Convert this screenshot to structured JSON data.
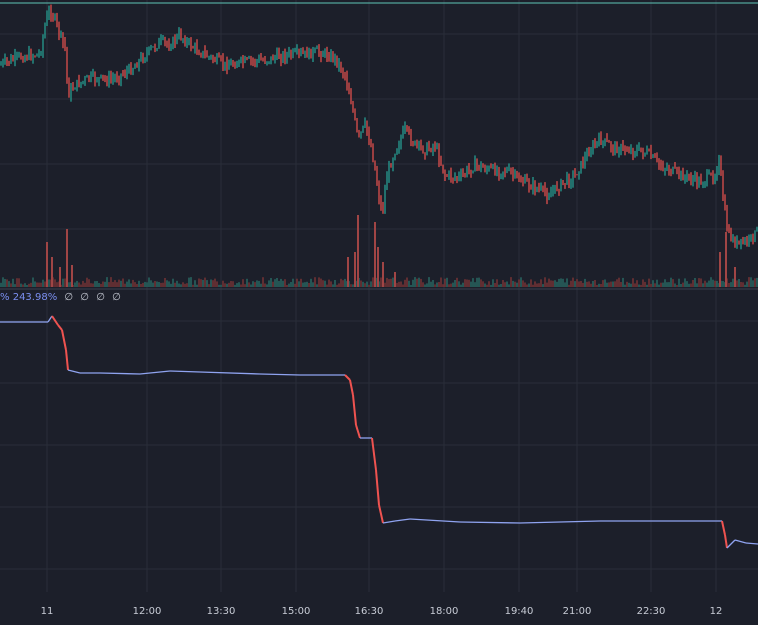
{
  "chart_data": [
    {
      "type": "candlestick",
      "panel": "price",
      "colors": {
        "up": "#26a69a",
        "down": "#ef5350",
        "background": "#1c1f2a",
        "grid": "#2a2e39"
      },
      "grid": true,
      "volume_overlay": true
    },
    {
      "type": "line",
      "panel": "indicator",
      "legend_text": "243.98%",
      "legend_text_prefix": "%",
      "na_values": [
        "∅",
        "∅",
        "∅",
        "∅"
      ],
      "colors": {
        "line_up": "#8fa3f0",
        "line_down": "#ef5350"
      },
      "grid": true
    }
  ],
  "x_axis": {
    "tick_labels": [
      "11",
      "12:00",
      "13:30",
      "15:00",
      "16:30",
      "18:00",
      "19:40",
      "21:00",
      "22:30",
      "12"
    ]
  },
  "series": {
    "price_path": [
      [
        0,
        65
      ],
      [
        20,
        57
      ],
      [
        40,
        54
      ],
      [
        46,
        20
      ],
      [
        50,
        10
      ],
      [
        55,
        20
      ],
      [
        60,
        35
      ],
      [
        65,
        48
      ],
      [
        68,
        95
      ],
      [
        75,
        85
      ],
      [
        90,
        78
      ],
      [
        110,
        80
      ],
      [
        130,
        70
      ],
      [
        145,
        55
      ],
      [
        160,
        42
      ],
      [
        170,
        45
      ],
      [
        180,
        35
      ],
      [
        190,
        45
      ],
      [
        205,
        55
      ],
      [
        225,
        65
      ],
      [
        245,
        62
      ],
      [
        265,
        60
      ],
      [
        285,
        55
      ],
      [
        300,
        55
      ],
      [
        320,
        52
      ],
      [
        335,
        58
      ],
      [
        345,
        75
      ],
      [
        352,
        105
      ],
      [
        358,
        140
      ],
      [
        365,
        125
      ],
      [
        372,
        150
      ],
      [
        378,
        190
      ],
      [
        382,
        215
      ],
      [
        387,
        175
      ],
      [
        395,
        150
      ],
      [
        405,
        130
      ],
      [
        415,
        145
      ],
      [
        425,
        150
      ],
      [
        435,
        145
      ],
      [
        445,
        175
      ],
      [
        460,
        178
      ],
      [
        475,
        165
      ],
      [
        490,
        170
      ],
      [
        505,
        170
      ],
      [
        520,
        180
      ],
      [
        540,
        190
      ],
      [
        548,
        195
      ],
      [
        560,
        185
      ],
      [
        575,
        175
      ],
      [
        590,
        150
      ],
      [
        600,
        140
      ],
      [
        615,
        148
      ],
      [
        630,
        150
      ],
      [
        645,
        152
      ],
      [
        660,
        165
      ],
      [
        680,
        175
      ],
      [
        700,
        182
      ],
      [
        715,
        175
      ],
      [
        719,
        155
      ],
      [
        723,
        200
      ],
      [
        728,
        235
      ],
      [
        738,
        245
      ],
      [
        750,
        240
      ],
      [
        758,
        230
      ]
    ],
    "volume_spikes": [
      [
        47,
        45
      ],
      [
        52,
        30
      ],
      [
        60,
        20
      ],
      [
        67,
        58
      ],
      [
        72,
        22
      ],
      [
        348,
        30
      ],
      [
        355,
        35
      ],
      [
        358,
        72
      ],
      [
        375,
        65
      ],
      [
        378,
        40
      ],
      [
        383,
        25
      ],
      [
        395,
        15
      ],
      [
        720,
        35
      ],
      [
        726,
        55
      ],
      [
        735,
        20
      ]
    ],
    "indicator_path": [
      [
        0,
        322
      ],
      [
        48,
        322
      ],
      [
        52,
        316
      ],
      [
        58,
        325
      ],
      [
        62,
        330
      ],
      [
        66,
        350
      ],
      [
        68,
        370
      ],
      [
        80,
        373
      ],
      [
        100,
        373
      ],
      [
        140,
        374
      ],
      [
        170,
        371
      ],
      [
        200,
        372
      ],
      [
        260,
        374
      ],
      [
        300,
        375
      ],
      [
        345,
        375
      ],
      [
        350,
        380
      ],
      [
        353,
        395
      ],
      [
        356,
        425
      ],
      [
        360,
        438
      ],
      [
        372,
        438
      ],
      [
        376,
        470
      ],
      [
        379,
        505
      ],
      [
        383,
        523
      ],
      [
        395,
        521
      ],
      [
        410,
        519
      ],
      [
        460,
        522
      ],
      [
        520,
        523
      ],
      [
        600,
        521
      ],
      [
        680,
        521
      ],
      [
        722,
        521
      ],
      [
        725,
        535
      ],
      [
        727,
        548
      ],
      [
        735,
        540
      ],
      [
        746,
        543
      ],
      [
        758,
        544
      ]
    ]
  }
}
